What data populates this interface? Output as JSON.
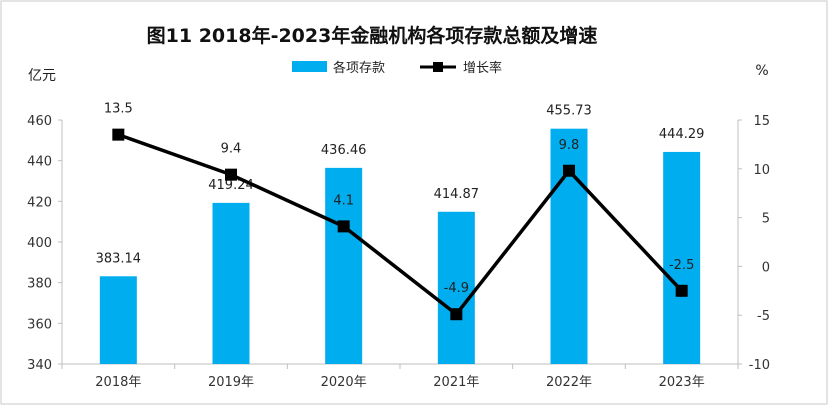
{
  "chart_data": {
    "type": "bar",
    "title": "图11  2018年-2023年金融机构各项存款总额及增速",
    "categories": [
      "2018年",
      "2019年",
      "2020年",
      "2021年",
      "2022年",
      "2023年"
    ],
    "left_axis": {
      "unit": "亿元",
      "ylim": [
        340,
        460
      ],
      "ticks": [
        340,
        360,
        380,
        400,
        420,
        440,
        460
      ]
    },
    "right_axis": {
      "unit": "%",
      "ylim": [
        -10,
        15
      ],
      "ticks": [
        -10,
        -5,
        0,
        5,
        10,
        15
      ]
    },
    "series": [
      {
        "name": "各项存款",
        "type": "bar",
        "axis": "left",
        "color": "#00AEEF",
        "values": [
          383.14,
          419.24,
          436.46,
          414.87,
          455.73,
          444.29
        ],
        "labels": [
          "383.14",
          "419.24",
          "436.46",
          "414.87",
          "455.73",
          "444.29"
        ]
      },
      {
        "name": "增长率",
        "type": "line",
        "axis": "right",
        "color": "#000000",
        "marker": "square",
        "values": [
          13.5,
          9.4,
          4.1,
          -4.9,
          9.8,
          -2.5
        ],
        "labels": [
          "13.5",
          "9.4",
          "4.1",
          "-4.9",
          "9.8",
          "-2.5"
        ]
      }
    ],
    "legend_position": "top-center",
    "grid": false
  }
}
